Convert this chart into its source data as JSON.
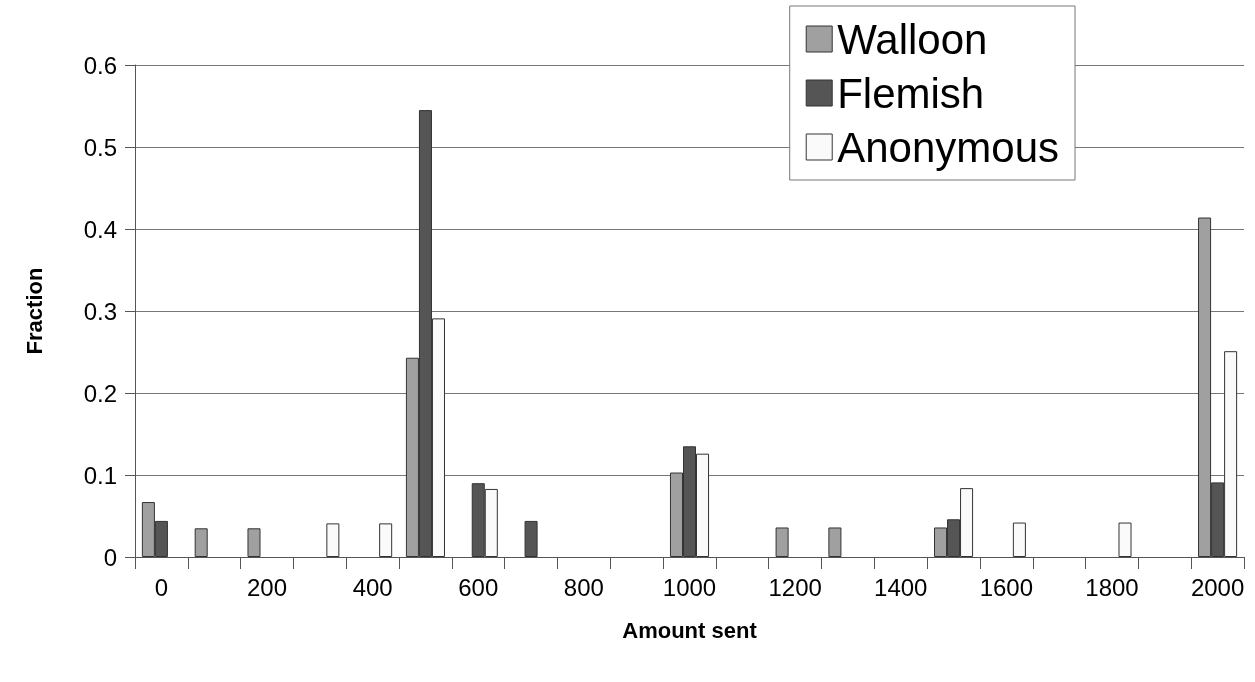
{
  "chart_data": {
    "type": "bar",
    "xlabel": "Amount sent",
    "ylabel": "Fraction",
    "categories": [
      "0",
      null,
      "200",
      null,
      "400",
      null,
      "600",
      null,
      "800",
      null,
      "1000",
      null,
      "1200",
      null,
      "1400",
      null,
      "1600",
      null,
      "1800",
      null,
      "2000"
    ],
    "series": [
      {
        "name": "Walloon",
        "color": "#a0a0a0",
        "values": [
          0.067,
          0.035,
          0.035,
          0,
          0,
          0.243,
          0,
          0,
          0,
          0,
          0.103,
          0,
          0.036,
          0.036,
          0,
          0.036,
          0,
          0,
          0,
          0,
          0.414
        ]
      },
      {
        "name": "Flemish",
        "color": "#555555",
        "values": [
          0.044,
          0,
          0,
          0,
          0,
          0.545,
          0.09,
          0.044,
          0,
          0,
          0.135,
          0,
          0,
          0,
          0,
          0.046,
          0,
          0,
          0,
          0,
          0.091
        ]
      },
      {
        "name": "Anonymous",
        "color": "#fafafa",
        "values": [
          0,
          0,
          0,
          0.041,
          0.041,
          0.291,
          0.083,
          0,
          0,
          0,
          0.126,
          0,
          0,
          0,
          0,
          0.084,
          0.042,
          0,
          0.042,
          0,
          0.251
        ]
      }
    ],
    "ylim": [
      0,
      0.6
    ],
    "yticks": [
      0,
      0.1,
      0.2,
      0.3,
      0.4,
      0.5,
      0.6
    ],
    "grid": "y",
    "legend": "top right"
  }
}
